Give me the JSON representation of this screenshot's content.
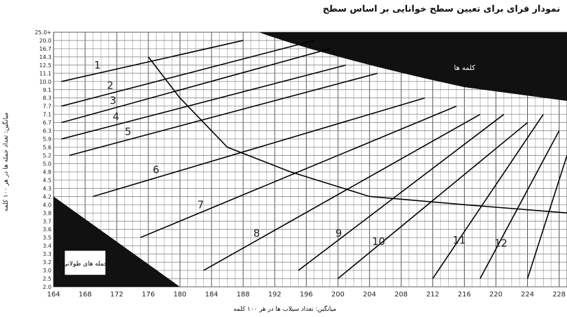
{
  "chart_data": {
    "type": "line",
    "title": "نمودار فرای برای تعیین سطح خوانایی بر اساس سطح",
    "xlabel": "میانگین: تعداد سیلاب ها در هر ۱۰۰ کلمه",
    "ylabel": "میانگین: تعداد جمله ها در هر ۱۰۰ کلمه",
    "x_ticks": [
      "164",
      "168",
      "172",
      "176",
      "180",
      "184",
      "188",
      "192",
      "196",
      "200",
      "204",
      "208",
      "212",
      "216",
      "220",
      "224",
      "228"
    ],
    "xlim": [
      164,
      229
    ],
    "y_ticks": [
      "25.0+",
      "20.0",
      "16.7",
      "14.3",
      "12.5",
      "11.1",
      "10.0",
      "9.1",
      "8.3",
      "7.7",
      "7.1",
      "6.7",
      "6.3",
      "5.9",
      "5.6",
      "5.2",
      "5.0",
      "4.8",
      "4.5",
      "4.3",
      "4.2",
      "4.0",
      "3.8",
      "3.7",
      "3.6",
      "3.5",
      "3.4",
      "3.3",
      "3.2",
      "3.0",
      "2.5",
      "2.0"
    ],
    "grid": true,
    "region_labels": {
      "long_words": "کلمه ها",
      "long_sentences": "جمله های طولانی"
    },
    "grade_lines": [
      {
        "label": "1",
        "points": [
          [
            165,
            "10.0"
          ],
          [
            188,
            "20.0"
          ]
        ]
      },
      {
        "label": "2",
        "points": [
          [
            165,
            "7.7"
          ],
          [
            197,
            "20.0"
          ]
        ]
      },
      {
        "label": "3",
        "points": [
          [
            165,
            "6.7"
          ],
          [
            199,
            "16.7"
          ]
        ]
      },
      {
        "label": "4",
        "points": [
          [
            165,
            "5.9"
          ],
          [
            201,
            "12.5"
          ]
        ]
      },
      {
        "label": "5",
        "points": [
          [
            166,
            "5.2"
          ],
          [
            205,
            "11.1"
          ]
        ]
      },
      {
        "label": "6",
        "points": [
          [
            169,
            "4.2"
          ],
          [
            211,
            "8.3"
          ]
        ]
      },
      {
        "label": "7",
        "points": [
          [
            175,
            "3.5"
          ],
          [
            215,
            "7.7"
          ]
        ]
      },
      {
        "label": "8",
        "points": [
          [
            183,
            "3.0"
          ],
          [
            218,
            "7.1"
          ]
        ]
      },
      {
        "label": "9",
        "points": [
          [
            195,
            "3.0"
          ],
          [
            221,
            "7.1"
          ]
        ]
      },
      {
        "label": "10",
        "points": [
          [
            200,
            "2.5"
          ],
          [
            224,
            "6.7"
          ]
        ]
      },
      {
        "label": "11",
        "points": [
          [
            212,
            "2.5"
          ],
          [
            226,
            "7.1"
          ]
        ]
      },
      {
        "label": "12",
        "points": [
          [
            218,
            "2.5"
          ],
          [
            228,
            "6.3"
          ]
        ]
      },
      {
        "label": "",
        "points": [
          [
            224,
            "2.5"
          ],
          [
            229,
            "5.2"
          ]
        ]
      }
    ],
    "boundary_curve": [
      [
        176,
        "14.3"
      ],
      [
        180,
        "8.3"
      ],
      [
        186,
        "5.6"
      ],
      [
        194,
        "4.8"
      ],
      [
        204,
        "4.2"
      ],
      [
        216,
        "4.0"
      ],
      [
        229,
        "3.8"
      ]
    ]
  }
}
